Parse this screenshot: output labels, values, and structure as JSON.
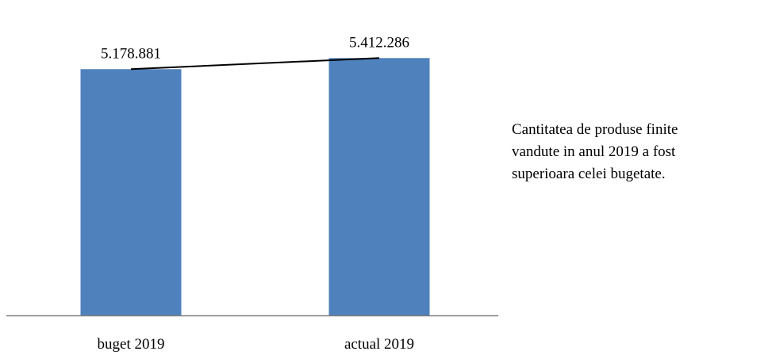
{
  "chart_data": {
    "type": "bar",
    "categories": [
      "buget 2019",
      "actual 2019"
    ],
    "values": [
      5178881,
      5412286
    ],
    "value_labels": [
      "5.178.881",
      "5.412.286"
    ],
    "title": "",
    "xlabel": "",
    "ylabel": "",
    "ylim": [
      0,
      5800000
    ],
    "grid": false,
    "legend": "none",
    "overlay": "line connecting bar tops",
    "colors": {
      "bar": "#4f81bd",
      "line": "#000000",
      "axis": "#808080"
    }
  },
  "note": {
    "lines": [
      "Cantitatea  de produse finite",
      "vandute in anul 2019  a fost",
      "superioara celei  bugetate."
    ]
  }
}
